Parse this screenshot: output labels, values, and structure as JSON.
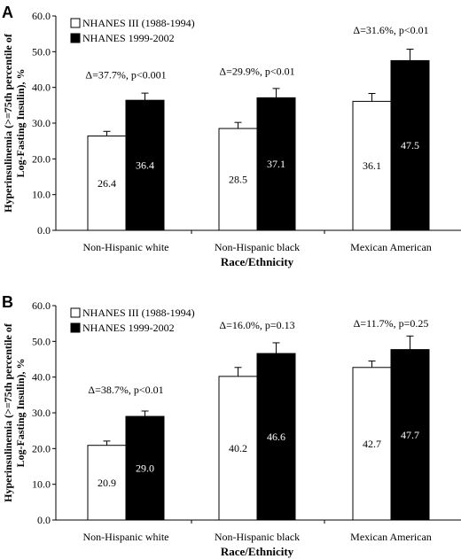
{
  "chart_data": [
    {
      "type": "bar",
      "panel_label": "A",
      "categories": [
        "Non-Hispanic white",
        "Non-Hispanic black",
        "Mexican American"
      ],
      "series": [
        {
          "name": "NHANES III (1988-1994)",
          "values": [
            26.4,
            28.5,
            36.1
          ],
          "errors": [
            1.3,
            1.7,
            2.2
          ],
          "color": "#ffffff"
        },
        {
          "name": "NHANES 1999-2002",
          "values": [
            36.4,
            37.1,
            47.5
          ],
          "errors": [
            2.0,
            2.6,
            3.2
          ],
          "color": "#000000"
        }
      ],
      "annotations": [
        "Δ=37.7%, p<0.001",
        "Δ=29.9%, p<0.01",
        "Δ=31.6%, p<0.01"
      ],
      "annotation_y": [
        42.5,
        43.5,
        55.0
      ],
      "ylim": [
        0,
        60
      ],
      "yticks": [
        "0.0",
        "10.0",
        "20.0",
        "30.0",
        "40.0",
        "50.0",
        "60.0"
      ],
      "xlabel": "Race/Ethnicity",
      "ylabel_line1": "Hyperinsulinemia (>=75th percentile of",
      "ylabel_line2": "Log-Fasting Insulin), %",
      "legend_position": "top-left",
      "grid": false
    },
    {
      "type": "bar",
      "panel_label": "B",
      "categories": [
        "Non-Hispanic white",
        "Non-Hispanic black",
        "Mexican American"
      ],
      "series": [
        {
          "name": "NHANES III (1988-1994)",
          "values": [
            20.9,
            40.2,
            42.7
          ],
          "errors": [
            1.2,
            2.5,
            1.8
          ],
          "color": "#ffffff"
        },
        {
          "name": "NHANES 1999-2002",
          "values": [
            29.0,
            46.6,
            47.7
          ],
          "errors": [
            1.5,
            3.0,
            3.8
          ],
          "color": "#000000"
        }
      ],
      "annotations": [
        "Δ=38.7%, p<0.01",
        "Δ=16.0%, p=0.13",
        "Δ=11.7%, p=0.25"
      ],
      "annotation_y": [
        35.5,
        53.5,
        54.0
      ],
      "ylim": [
        0,
        60
      ],
      "yticks": [
        "0.0",
        "10.0",
        "20.0",
        "30.0",
        "40.0",
        "50.0",
        "60.0"
      ],
      "xlabel": "Race/Ethnicity",
      "ylabel_line1": "Hyperinsulinemia (>=75th percentile of",
      "ylabel_line2": "Log-Fasting Insulin), %",
      "legend_position": "top-left",
      "grid": false
    }
  ]
}
